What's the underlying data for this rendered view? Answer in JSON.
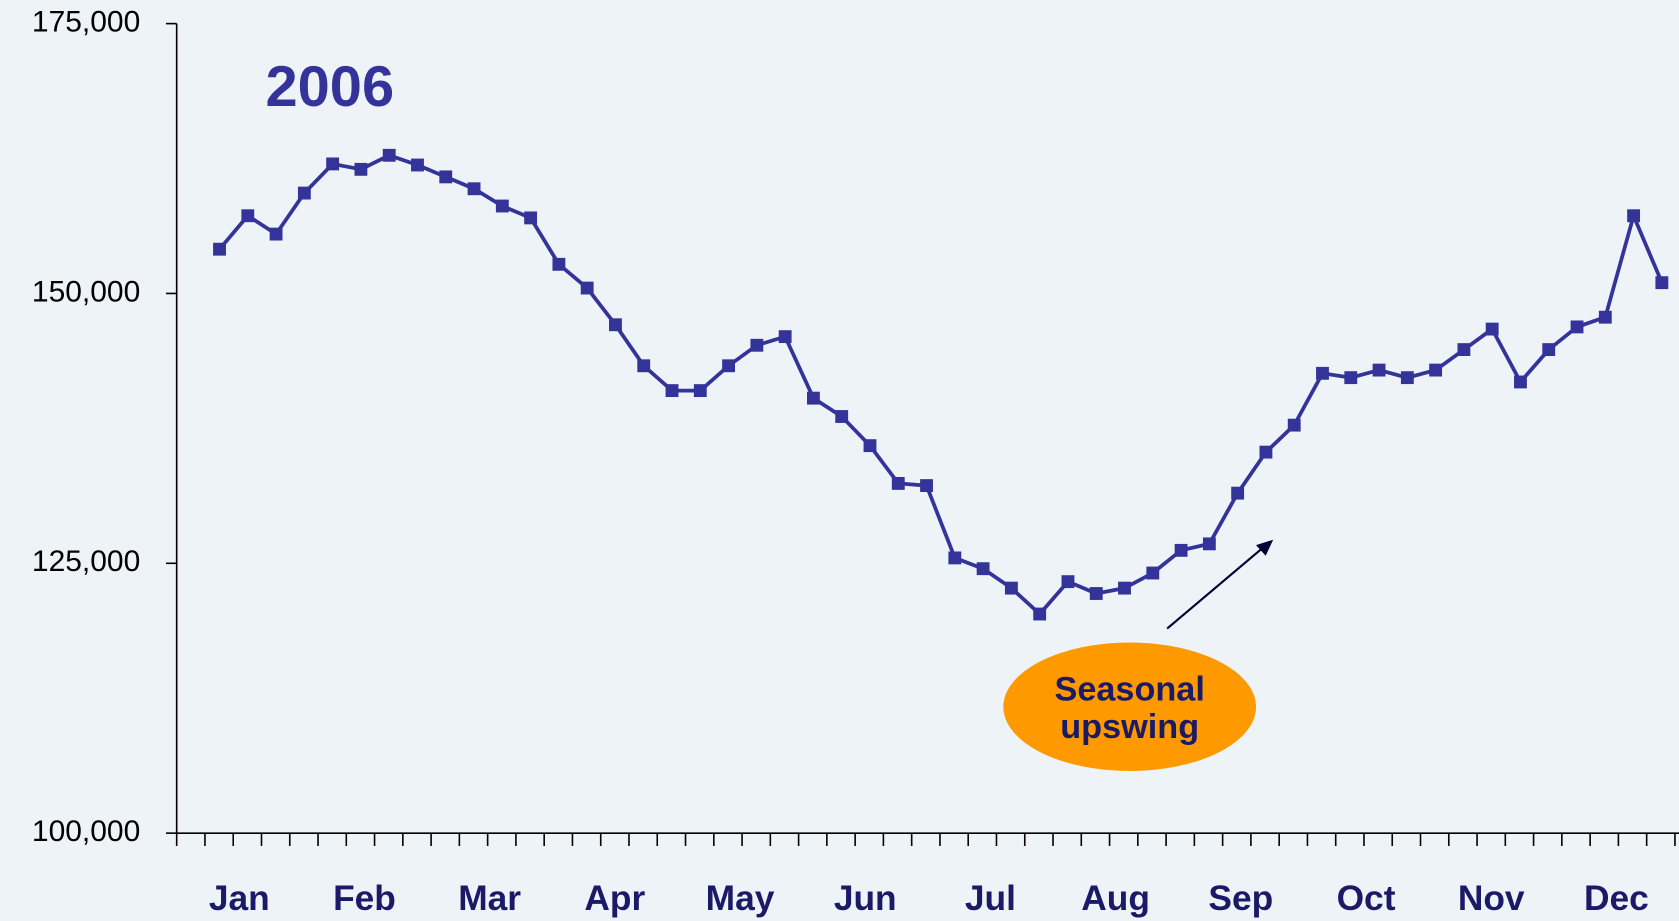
{
  "chart_data": {
    "type": "line",
    "title": "2006",
    "x_labels": [
      "Jan",
      "Feb",
      "Mar",
      "Apr",
      "May",
      "Jun",
      "Jul",
      "Aug",
      "Sep",
      "Oct",
      "Nov",
      "Dec"
    ],
    "values": [
      154100,
      157200,
      155500,
      159300,
      162000,
      161500,
      162800,
      161900,
      160800,
      159700,
      158100,
      157000,
      152700,
      150500,
      147100,
      143300,
      141000,
      141000,
      143300,
      145200,
      146000,
      140300,
      138600,
      135900,
      132400,
      132200,
      125500,
      124500,
      122700,
      120300,
      123300,
      122200,
      122700,
      124100,
      126200,
      126800,
      131500,
      135300,
      137800,
      142600,
      142200,
      142900,
      142200,
      142900,
      144800,
      146700,
      141800,
      144800,
      146900,
      147800,
      157200,
      151000
    ],
    "color": "#333399",
    "ylim": [
      100000,
      175000
    ],
    "yticks": [
      {
        "value": 100000,
        "label": "100,000"
      },
      {
        "value": 125000,
        "label": "125,000"
      },
      {
        "value": 150000,
        "label": "150,000"
      },
      {
        "value": 175000,
        "label": "175,000"
      }
    ],
    "annotation": {
      "lines": [
        "Seasonal",
        "upswing"
      ],
      "color": "#ff9900"
    }
  }
}
